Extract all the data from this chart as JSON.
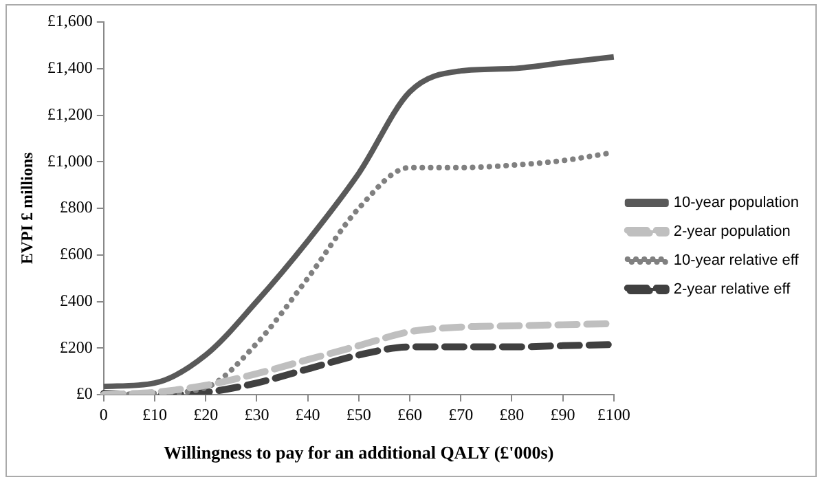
{
  "chart_data": {
    "type": "line",
    "xlabel": "Willingness to pay for an additional QALY (£'000s)",
    "ylabel": "EVPI £ millions",
    "categories": [
      "0",
      "£10",
      "£20",
      "£30",
      "£40",
      "£50",
      "£60",
      "£70",
      "£80",
      "£90",
      "£100"
    ],
    "ylim": [
      0,
      1600
    ],
    "yticks": [
      {
        "value": 0,
        "label": "£0"
      },
      {
        "value": 200,
        "label": "£200"
      },
      {
        "value": 400,
        "label": "£400"
      },
      {
        "value": 600,
        "label": "£600"
      },
      {
        "value": 800,
        "label": "£800"
      },
      {
        "value": 1000,
        "label": "£1,000"
      },
      {
        "value": 1200,
        "label": "£1,200"
      },
      {
        "value": 1400,
        "label": "£1,400"
      },
      {
        "value": 1600,
        "label": "£1,600"
      }
    ],
    "grid": false,
    "legend": "right",
    "marker": "none",
    "series": [
      {
        "name": "10-year population",
        "color": "#595959",
        "line_style": "solid",
        "values": [
          35,
          50,
          170,
          400,
          660,
          950,
          1300,
          1390,
          1400,
          1425,
          1450
        ]
      },
      {
        "name": "2-year population",
        "color": "#bfbfbf",
        "line_style": "dashed",
        "values": [
          0,
          10,
          40,
          90,
          150,
          210,
          270,
          290,
          295,
          300,
          305
        ]
      },
      {
        "name": "10-year relative eff",
        "color": "#808080",
        "line_style": "dotted",
        "values": [
          0,
          5,
          30,
          220,
          500,
          800,
          975,
          975,
          985,
          1005,
          1040
        ]
      },
      {
        "name": "2-year relative eff",
        "color": "#404040",
        "line_style": "dashed",
        "values": [
          5,
          0,
          10,
          50,
          110,
          170,
          205,
          205,
          205,
          210,
          215
        ]
      }
    ]
  }
}
